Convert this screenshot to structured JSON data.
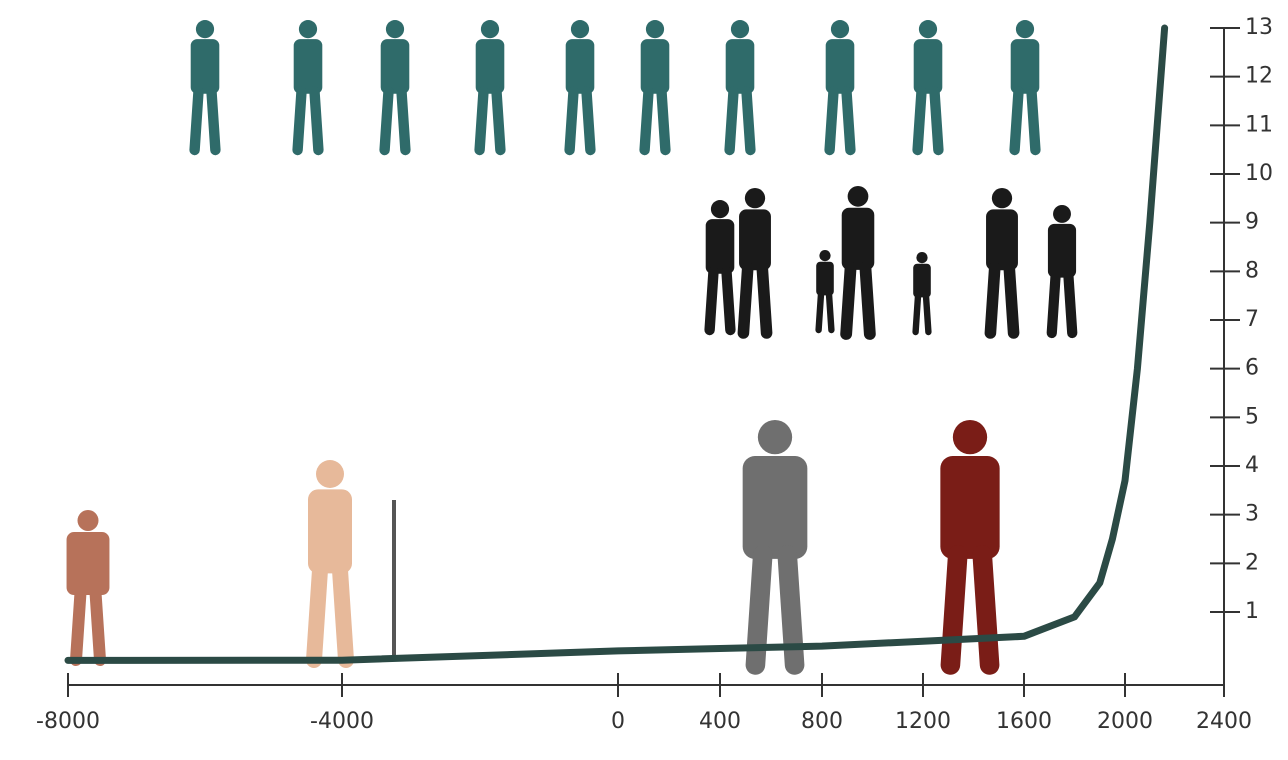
{
  "chart_data": {
    "type": "line",
    "x": [
      -8000,
      -4000,
      0,
      400,
      800,
      1200,
      1600,
      1800,
      1900,
      1950,
      2000,
      2050,
      2100,
      2160
    ],
    "values": [
      0.005,
      0.01,
      0.2,
      0.25,
      0.3,
      0.4,
      0.5,
      0.9,
      1.6,
      2.5,
      3.7,
      6,
      9,
      13
    ],
    "color": "#2b4a45",
    "xlim": [
      -8000,
      2400
    ],
    "xticks": [
      -8000,
      -4000,
      0,
      400,
      800,
      1200,
      1600,
      2000,
      2400
    ],
    "ylim": [
      -0.5,
      13
    ],
    "yticks": [
      1,
      2,
      3,
      4,
      5,
      6,
      7,
      8,
      9,
      10,
      11,
      12,
      13
    ],
    "grid": false
  }
}
